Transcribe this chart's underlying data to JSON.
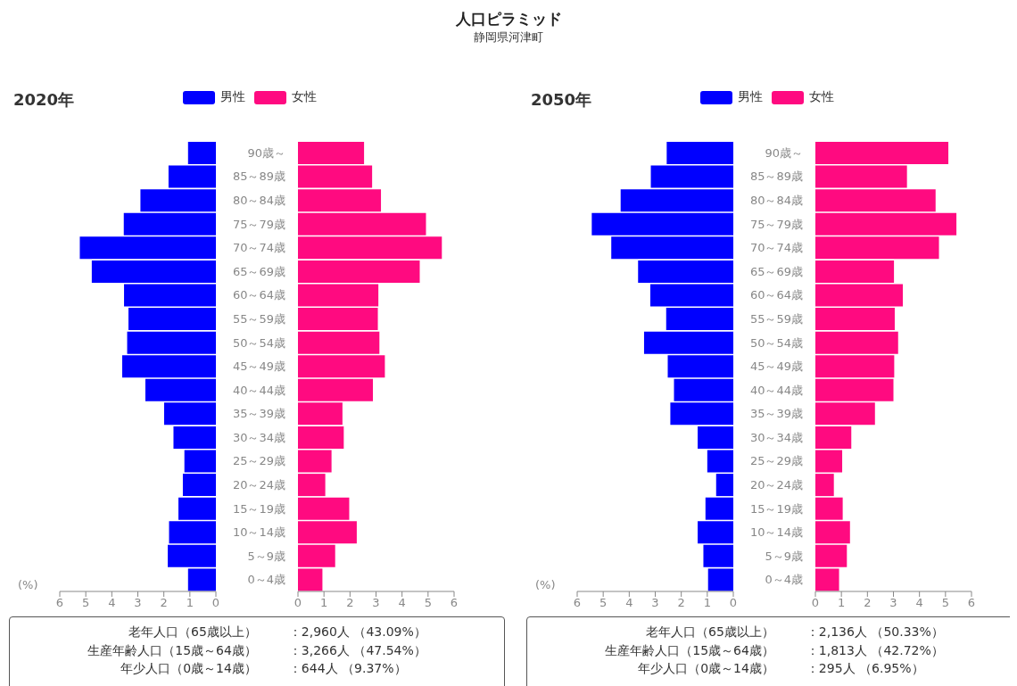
{
  "chart_data": [
    {
      "type": "other",
      "title": "人口ピラミッド",
      "subtitle": "静岡県河津町"
    },
    {
      "type": "bar",
      "title": "2020年",
      "orientation": "horizontal",
      "xlabel": "(%)",
      "legend": "top",
      "categories": [
        "90歳～",
        "85～89歳",
        "80～84歳",
        "75～79歳",
        "70～74歳",
        "65～69歳",
        "60～64歳",
        "55～59歳",
        "50～54歳",
        "45～49歳",
        "40～44歳",
        "35～39歳",
        "30～34歳",
        "25～29歳",
        "20～24歳",
        "15～19歳",
        "10～14歳",
        "5～9歳",
        "0～4歳"
      ],
      "series": [
        {
          "name": "男性",
          "color": "#0000ff",
          "values": [
            1.07,
            1.82,
            2.9,
            3.54,
            5.23,
            4.77,
            3.53,
            3.36,
            3.41,
            3.6,
            2.71,
            1.99,
            1.63,
            1.21,
            1.27,
            1.44,
            1.8,
            1.85,
            1.07
          ]
        }
      ],
      "xlim": [
        6,
        0
      ],
      "xticks": [
        6,
        5,
        4,
        3,
        2,
        1,
        0
      ]
    },
    {
      "type": "bar",
      "orientation": "horizontal",
      "legend": "top",
      "tick_labels": "x",
      "categories": [
        null,
        null,
        null,
        null,
        null,
        null,
        null,
        null,
        null,
        null,
        null,
        null,
        null,
        null,
        null,
        null,
        null,
        null,
        null
      ],
      "series": [
        {
          "name": "女性",
          "color": "#ff0a80",
          "values": [
            2.54,
            2.85,
            3.19,
            4.92,
            5.53,
            4.68,
            3.09,
            3.07,
            3.13,
            3.34,
            2.88,
            1.71,
            1.76,
            1.29,
            1.05,
            1.97,
            2.26,
            1.43,
            0.94
          ]
        }
      ],
      "xlim": [
        0,
        6
      ],
      "xticks": [
        0,
        1,
        2,
        3,
        4,
        5,
        6
      ]
    },
    {
      "type": "other",
      "annotations": [
        "老年人口（65歳以上）",
        "：2,960人 （43.09%）",
        "生産年齢人口（15歳～64歳）",
        "：3,266人 （47.54%）",
        "年少人口（0歳～14歳）",
        "：644人 （9.37%）"
      ]
    },
    {
      "type": "bar",
      "title": "2050年",
      "orientation": "horizontal",
      "xlabel": "(%)",
      "legend": "top",
      "categories": [
        "90歳～",
        "85～89歳",
        "80～84歳",
        "75～79歳",
        "70～74歳",
        "65～69歳",
        "60～64歳",
        "55～59歳",
        "50～54歳",
        "45～49歳",
        "40～44歳",
        "35～39歳",
        "30～34歳",
        "25～29歳",
        "20～24歳",
        "15～19歳",
        "10～14歳",
        "5～9歳",
        "0～4歳"
      ],
      "series": [
        {
          "name": "男性",
          "color": "#0000ff",
          "values": [
            2.56,
            3.17,
            4.33,
            5.44,
            4.69,
            3.66,
            3.19,
            2.58,
            3.43,
            2.52,
            2.28,
            2.42,
            1.37,
            1.0,
            0.66,
            1.07,
            1.37,
            1.15,
            0.97
          ]
        }
      ],
      "xlim": [
        6,
        0
      ],
      "xticks": [
        6,
        5,
        4,
        3,
        2,
        1,
        0
      ]
    },
    {
      "type": "bar",
      "orientation": "horizontal",
      "legend": "top",
      "tick_labels": "x",
      "categories": [
        null,
        null,
        null,
        null,
        null,
        null,
        null,
        null,
        null,
        null,
        null,
        null,
        null,
        null,
        null,
        null,
        null,
        null,
        null
      ],
      "series": [
        {
          "name": "女性",
          "color": "#ff0a80",
          "values": [
            5.11,
            3.52,
            4.62,
            5.42,
            4.75,
            3.02,
            3.36,
            3.05,
            3.18,
            3.03,
            3.0,
            2.29,
            1.38,
            1.03,
            0.71,
            1.05,
            1.33,
            1.21,
            0.91
          ]
        }
      ],
      "xlim": [
        0,
        6
      ],
      "xticks": [
        0,
        1,
        2,
        3,
        4,
        5,
        6
      ]
    },
    {
      "type": "other",
      "annotations": [
        "老年人口（65歳以上）",
        "：2,136人 （50.33%）",
        "生産年齢人口（15歳～64歳）",
        "：1,813人 （42.72%）",
        "年少人口（0歳～14歳）",
        "：295人 （6.95%）"
      ]
    }
  ]
}
